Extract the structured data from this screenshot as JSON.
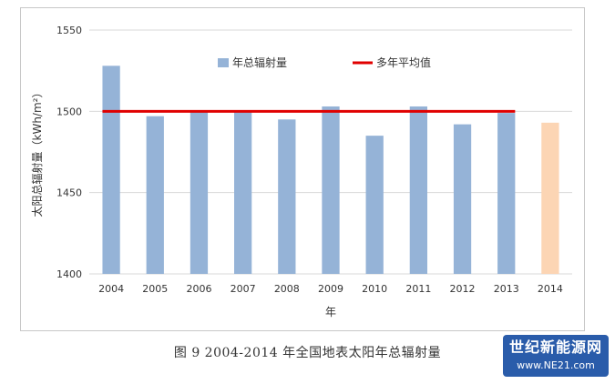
{
  "chart_data": {
    "type": "bar",
    "categories": [
      "2004",
      "2005",
      "2006",
      "2007",
      "2008",
      "2009",
      "2010",
      "2011",
      "2012",
      "2013",
      "2014"
    ],
    "series": [
      {
        "name": "年总辐射量",
        "values": [
          1528,
          1497,
          1500,
          1500,
          1495,
          1503,
          1485,
          1503,
          1492,
          1499,
          1493
        ],
        "color": "#95b3d7",
        "highlight_color": "#fcd5b4",
        "highlight_index": 10
      },
      {
        "name": "多年平均值",
        "type": "line",
        "value": 1500,
        "x_range": [
          "2004",
          "2013"
        ],
        "color": "#e00000"
      }
    ],
    "xlabel": "年",
    "ylabel": "太阳总辐射量（kWh/m²）",
    "ylim": [
      1400,
      1550
    ],
    "yticks": [
      1400,
      1450,
      1500,
      1550
    ],
    "grid": true,
    "legend_position": "top"
  },
  "caption": "图 9   2004-2014 年全国地表太阳年总辐射量",
  "watermark": {
    "main": "世纪新能源网",
    "sub": "www.NE21.com"
  }
}
